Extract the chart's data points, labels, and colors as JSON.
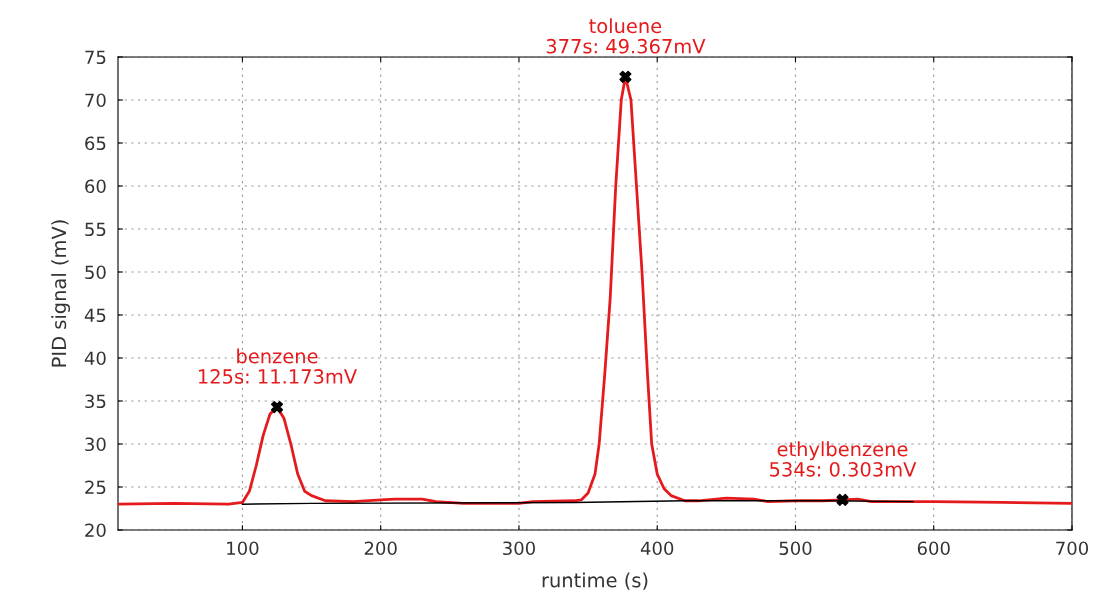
{
  "chart_data": {
    "type": "line",
    "xlabel": "runtime (s)",
    "ylabel": "PID signal (mV)",
    "xlim": [
      10,
      700
    ],
    "xticks": [
      100,
      200,
      300,
      400,
      500,
      600,
      700
    ],
    "ylim": [
      20,
      75
    ],
    "yticks": [
      20,
      25,
      30,
      35,
      40,
      45,
      50,
      55,
      60,
      65,
      70,
      75
    ],
    "grid": true,
    "legend": false,
    "series": [
      {
        "color": "#000000",
        "marker": "none",
        "x": [
          100,
          150,
          340,
          420,
          520,
          585
        ],
        "values": [
          23.0,
          23.1,
          23.2,
          23.4,
          23.4,
          23.3
        ]
      },
      {
        "color": "#e41a1c",
        "marker": "none",
        "x": [
          10,
          50,
          90,
          100,
          105,
          110,
          115,
          120,
          125,
          130,
          135,
          140,
          145,
          150,
          160,
          180,
          200,
          210,
          230,
          240,
          260,
          300,
          310,
          340,
          345,
          350,
          355,
          358,
          362,
          366,
          370,
          374,
          377,
          381,
          385,
          389,
          393,
          396,
          400,
          405,
          410,
          420,
          430,
          450,
          470,
          480,
          500,
          520,
          534,
          545,
          555,
          600,
          650,
          700
        ],
        "values": [
          23.0,
          23.1,
          23.0,
          23.2,
          24.5,
          27.5,
          31.0,
          33.5,
          34.3,
          33.0,
          30.0,
          26.5,
          24.5,
          24.0,
          23.4,
          23.3,
          23.5,
          23.6,
          23.6,
          23.3,
          23.1,
          23.1,
          23.3,
          23.4,
          23.5,
          24.3,
          26.5,
          30.0,
          38.0,
          47.0,
          60.0,
          70.0,
          72.7,
          70.0,
          60.0,
          50.0,
          38.0,
          30.0,
          26.5,
          24.8,
          24.0,
          23.4,
          23.4,
          23.7,
          23.6,
          23.3,
          23.4,
          23.4,
          23.5,
          23.6,
          23.3,
          23.3,
          23.2,
          23.1
        ]
      },
      {
        "type": "scatter",
        "color": "#000000",
        "marker": "cross",
        "x": [
          125,
          377,
          534
        ],
        "values": [
          34.3,
          72.7,
          23.5
        ]
      }
    ],
    "annotations": [
      {
        "text": "benzene\n125s: 11.173mV",
        "x": 125,
        "y": 34.3
      },
      {
        "text": "toluene\n377s: 49.367mV",
        "x": 377,
        "y": 72.7
      },
      {
        "text": "ethylbenzene\n534s: 0.303mV",
        "x": 534,
        "y": 23.5
      }
    ]
  }
}
